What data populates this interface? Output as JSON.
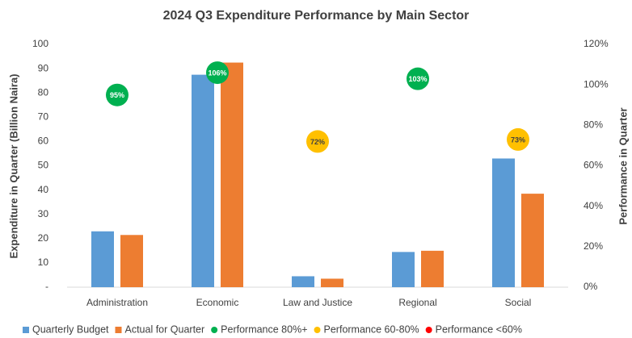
{
  "chart_data": {
    "type": "bar",
    "title": "2024 Q3 Expenditure Performance by Main Sector",
    "y_label": "Expenditure in Quarter (Billion Naira)",
    "y2_label": "Performance in Quarter",
    "categories": [
      "Administration",
      "Economic",
      "Law and Justice",
      "Regional",
      "Social"
    ],
    "series": [
      {
        "name": "Quarterly Budget",
        "color": "#5b9bd5",
        "values": [
          23,
          87.5,
          4.5,
          14.5,
          53
        ]
      },
      {
        "name": "Actual for Quarter",
        "color": "#ed7d31",
        "values": [
          21.5,
          92.5,
          3.5,
          15,
          38.5
        ]
      },
      {
        "name": "Performance 80%+",
        "color": "#00b050",
        "axis": "y2",
        "values": [
          95,
          106,
          null,
          103,
          null
        ],
        "value_labels": [
          "95%",
          "106%",
          null,
          "103%",
          null
        ]
      },
      {
        "name": "Performance 60-80%",
        "color": "#ffc000",
        "axis": "y2",
        "values": [
          null,
          null,
          72,
          null,
          73
        ],
        "value_labels": [
          null,
          null,
          "72%",
          null,
          "73%"
        ]
      },
      {
        "name": "Performance <60%",
        "color": "#ff0000",
        "axis": "y2",
        "values": [
          null,
          null,
          null,
          null,
          null
        ]
      }
    ],
    "ylim": [
      0,
      100
    ],
    "yticks": [
      {
        "value": 0,
        "label": "-"
      },
      10,
      20,
      30,
      40,
      50,
      60,
      70,
      80,
      90,
      100
    ],
    "y2lim": [
      0,
      120
    ],
    "y2ticks": [
      {
        "value": 0,
        "label": "0%"
      },
      {
        "value": 20,
        "label": "20%"
      },
      {
        "value": 40,
        "label": "40%"
      },
      {
        "value": 60,
        "label": "60%"
      },
      {
        "value": 80,
        "label": "80%"
      },
      {
        "value": 100,
        "label": "100%"
      },
      {
        "value": 120,
        "label": "120%"
      }
    ],
    "grid": false,
    "legend": "bottom"
  }
}
